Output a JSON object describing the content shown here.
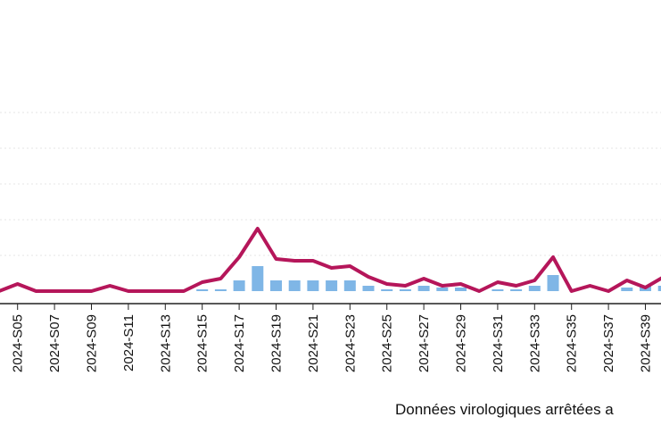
{
  "chart_data": {
    "type": "bar",
    "x_tick_labels": [
      "2024-S05",
      "2024-S07",
      "2024-S09",
      "2024-S11",
      "2024-S13",
      "2024-S15",
      "2024-S17",
      "2024-S19",
      "2024-S21",
      "2024-S23",
      "2024-S25",
      "2024-S27",
      "2024-S29",
      "2024-S31",
      "2024-S33",
      "2024-S35",
      "2024-S37",
      "2024-S39"
    ],
    "weeks": [
      "2024-S04",
      "2024-S05",
      "2024-S06",
      "2024-S07",
      "2024-S08",
      "2024-S09",
      "2024-S10",
      "2024-S11",
      "2024-S12",
      "2024-S13",
      "2024-S14",
      "2024-S15",
      "2024-S16",
      "2024-S17",
      "2024-S18",
      "2024-S19",
      "2024-S20",
      "2024-S21",
      "2024-S22",
      "2024-S23",
      "2024-S24",
      "2024-S25",
      "2024-S26",
      "2024-S27",
      "2024-S28",
      "2024-S29",
      "2024-S30",
      "2024-S31",
      "2024-S32",
      "2024-S33",
      "2024-S34",
      "2024-S35",
      "2024-S36",
      "2024-S37",
      "2024-S38",
      "2024-S39",
      "2024-S40"
    ],
    "series": [
      {
        "kind": "bar",
        "color": "#7fb6e6",
        "values": [
          0,
          0,
          0,
          0,
          0,
          0,
          0,
          0,
          0,
          0,
          0,
          1,
          1,
          6,
          14,
          6,
          6,
          6,
          6,
          6,
          3,
          1,
          1,
          3,
          2,
          2,
          0,
          1,
          1,
          3,
          9,
          0,
          0,
          0,
          2,
          3,
          3
        ]
      },
      {
        "kind": "line",
        "color": "#b5165a",
        "values": [
          0,
          4,
          0,
          0,
          0,
          0,
          3,
          0,
          0,
          0,
          0,
          5,
          7,
          19,
          35,
          18,
          17,
          17,
          13,
          14,
          8,
          4,
          3,
          7,
          3,
          4,
          0,
          5,
          3,
          6,
          19,
          0,
          3,
          0,
          6,
          2,
          8
        ]
      }
    ],
    "ylim": [
      0,
      120
    ],
    "y_gridlines": [
      0,
      20,
      40,
      60,
      80,
      100
    ],
    "grid": true
  },
  "footnote": "Données virologiques arrêtées a"
}
